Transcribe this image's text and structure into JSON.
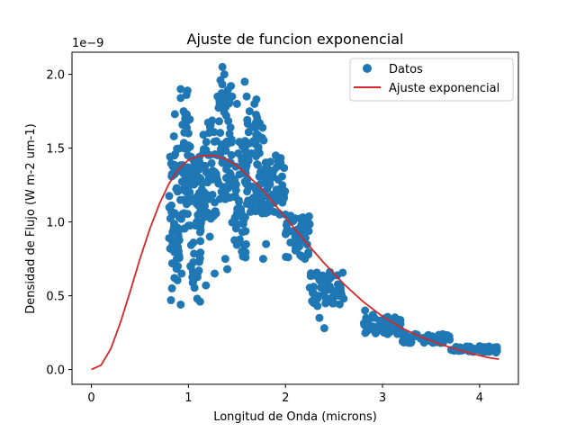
{
  "chart_data": {
    "type": "scatter",
    "title": "Ajuste de funcion exponencial",
    "xlabel": "Longitud de Onda (microns)",
    "ylabel": "Densidad de Flujo (W m-2 um-1)",
    "y_offset_label": "1e−9",
    "xlim": [
      -0.2,
      4.4
    ],
    "ylim": [
      -0.1,
      2.15
    ],
    "xticks": [
      0,
      1,
      2,
      3,
      4
    ],
    "xtick_labels": [
      "0",
      "1",
      "2",
      "3",
      "4"
    ],
    "yticks": [
      0.0,
      0.5,
      1.0,
      1.5,
      2.0
    ],
    "ytick_labels": [
      "0.0",
      "0.5",
      "1.0",
      "1.5",
      "2.0"
    ],
    "grid": false,
    "legend_position": "top-right",
    "colors": {
      "data": "#1f77b4",
      "fit": "#d62728"
    },
    "series": [
      {
        "name": "Datos",
        "kind": "scatter",
        "bands": [
          {
            "x_range": [
              0.8,
              0.93
            ],
            "y_center": 1.05,
            "spread": 0.45,
            "count": 60
          },
          {
            "x_range": [
              0.93,
              1.02
            ],
            "y_center": 1.35,
            "spread": 0.4,
            "count": 50
          },
          {
            "x_range": [
              1.02,
              1.15
            ],
            "y_center": 1.0,
            "spread": 0.45,
            "count": 55
          },
          {
            "x_range": [
              1.15,
              1.3
            ],
            "y_center": 1.35,
            "spread": 0.35,
            "count": 50
          },
          {
            "x_range": [
              1.3,
              1.45
            ],
            "y_center": 1.55,
            "spread": 0.4,
            "count": 60
          },
          {
            "x_range": [
              1.45,
              1.6
            ],
            "y_center": 1.15,
            "spread": 0.4,
            "count": 55
          },
          {
            "x_range": [
              1.6,
              1.78
            ],
            "y_center": 1.4,
            "spread": 0.35,
            "count": 60
          },
          {
            "x_range": [
              1.78,
              2.0
            ],
            "y_center": 1.25,
            "spread": 0.2,
            "count": 55
          },
          {
            "x_range": [
              2.0,
              2.25
            ],
            "y_center": 0.9,
            "spread": 0.15,
            "count": 50
          },
          {
            "x_range": [
              2.25,
              2.6
            ],
            "y_center": 0.55,
            "spread": 0.12,
            "count": 55
          },
          {
            "x_range": [
              2.8,
              3.2
            ],
            "y_center": 0.3,
            "spread": 0.06,
            "count": 55
          },
          {
            "x_range": [
              3.2,
              3.7
            ],
            "y_center": 0.21,
            "spread": 0.03,
            "count": 60
          },
          {
            "x_range": [
              3.7,
              4.18
            ],
            "y_center": 0.14,
            "spread": 0.02,
            "count": 60
          }
        ],
        "points": [
          [
            0.82,
            0.47
          ],
          [
            0.83,
            0.55
          ],
          [
            0.85,
            1.58
          ],
          [
            0.86,
            1.73
          ],
          [
            0.88,
            0.75
          ],
          [
            0.92,
            1.9
          ],
          [
            0.92,
            1.84
          ],
          [
            0.92,
            0.44
          ],
          [
            0.93,
            0.65
          ],
          [
            0.95,
            1.75
          ],
          [
            0.98,
            1.86
          ],
          [
            0.99,
            1.89
          ],
          [
            1.0,
            1.6
          ],
          [
            1.02,
            0.7
          ],
          [
            1.05,
            0.6
          ],
          [
            1.09,
            0.48
          ],
          [
            1.12,
            0.46
          ],
          [
            1.18,
            0.57
          ],
          [
            1.22,
            0.9
          ],
          [
            1.27,
            0.65
          ],
          [
            1.3,
            1.85
          ],
          [
            1.33,
            1.96
          ],
          [
            1.35,
            2.05
          ],
          [
            1.37,
            2.0
          ],
          [
            1.38,
            0.75
          ],
          [
            1.4,
            0.68
          ],
          [
            1.45,
            1.85
          ],
          [
            1.5,
            1.8
          ],
          [
            1.55,
            0.8
          ],
          [
            1.58,
            1.95
          ],
          [
            1.6,
            1.85
          ],
          [
            1.63,
            1.75
          ],
          [
            1.68,
            1.8
          ],
          [
            1.7,
            1.83
          ],
          [
            1.72,
            1.5
          ],
          [
            1.77,
            0.75
          ],
          [
            1.8,
            0.85
          ],
          [
            1.85,
            1.3
          ],
          [
            1.9,
            1.45
          ],
          [
            1.95,
            1.4
          ],
          [
            2.0,
            1.05
          ],
          [
            2.1,
            0.9
          ],
          [
            2.2,
            0.75
          ],
          [
            2.3,
            0.5
          ],
          [
            2.35,
            0.35
          ],
          [
            2.4,
            0.28
          ],
          [
            2.5,
            0.45
          ],
          [
            2.55,
            0.5
          ],
          [
            2.6,
            0.48
          ],
          [
            2.82,
            0.4
          ],
          [
            2.9,
            0.37
          ],
          [
            3.0,
            0.28
          ],
          [
            3.1,
            0.27
          ],
          [
            3.25,
            0.23
          ],
          [
            3.4,
            0.21
          ],
          [
            3.5,
            0.19
          ],
          [
            3.6,
            0.18
          ],
          [
            3.8,
            0.15
          ],
          [
            4.0,
            0.13
          ],
          [
            4.1,
            0.12
          ],
          [
            4.17,
            0.115
          ]
        ]
      },
      {
        "name": "Ajuste exponencial",
        "kind": "line",
        "x": [
          0.0,
          0.1,
          0.2,
          0.3,
          0.4,
          0.5,
          0.6,
          0.7,
          0.8,
          0.9,
          1.0,
          1.1,
          1.2,
          1.25,
          1.3,
          1.4,
          1.5,
          1.6,
          1.7,
          1.8,
          1.9,
          2.0,
          2.2,
          2.4,
          2.6,
          2.8,
          3.0,
          3.2,
          3.4,
          3.6,
          3.8,
          4.0,
          4.1,
          4.2
        ],
        "y": [
          0.0,
          0.03,
          0.14,
          0.32,
          0.53,
          0.75,
          0.95,
          1.12,
          1.26,
          1.36,
          1.42,
          1.445,
          1.45,
          1.45,
          1.445,
          1.42,
          1.38,
          1.32,
          1.26,
          1.19,
          1.11,
          1.03,
          0.87,
          0.72,
          0.58,
          0.46,
          0.36,
          0.28,
          0.22,
          0.17,
          0.13,
          0.095,
          0.08,
          0.07
        ]
      }
    ]
  }
}
